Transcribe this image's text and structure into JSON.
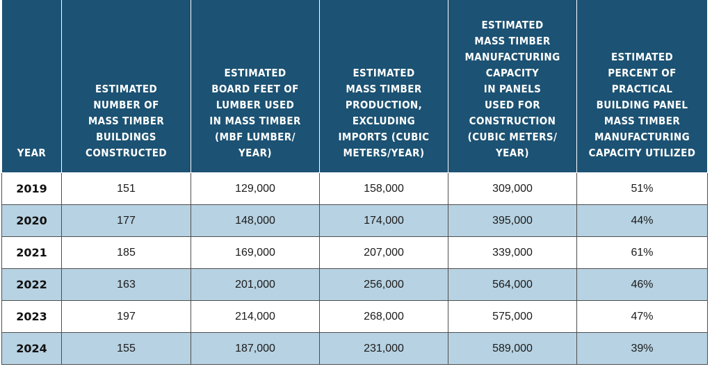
{
  "table": {
    "headers": [
      "YEAR",
      "ESTIMATED\nNUMBER OF\nMASS TIMBER\nBUILDINGS\nCONSTRUCTED",
      "ESTIMATED\nBOARD FEET OF\nLUMBER USED\nIN MASS TIMBER\n(MBF LUMBER/\nYEAR)",
      "ESTIMATED\nMASS TIMBER\nPRODUCTION,\nEXCLUDING\nIMPORTS (CUBIC\nMETERS/YEAR)",
      "ESTIMATED\nMASS TIMBER\nMANUFACTURING\nCAPACITY\nIN PANELS\nUSED FOR\nCONSTRUCTION\n(CUBIC METERS/\nYEAR)",
      "ESTIMATED\nPERCENT OF\nPRACTICAL\nBUILDING PANEL\nMASS TIMBER\nMANUFACTURING\nCAPACITY UTILIZED"
    ],
    "rows": [
      [
        "2019",
        "151",
        "129,000",
        "158,000",
        "309,000",
        "51%"
      ],
      [
        "2020",
        "177",
        "148,000",
        "174,000",
        "395,000",
        "44%"
      ],
      [
        "2021",
        "185",
        "169,000",
        "207,000",
        "339,000",
        "61%"
      ],
      [
        "2022",
        "163",
        "201,000",
        "256,000",
        "564,000",
        "46%"
      ],
      [
        "2023",
        "197",
        "214,000",
        "268,000",
        "575,000",
        "47%"
      ],
      [
        "2024",
        "155",
        "187,000",
        "231,000",
        "589,000",
        "39%"
      ]
    ]
  },
  "colors": {
    "header_bg": "#1c5273",
    "header_text": "#ffffff",
    "shaded_row": "#b7d2e2",
    "plain_row": "#ffffff",
    "border": "#4d4d4d"
  }
}
